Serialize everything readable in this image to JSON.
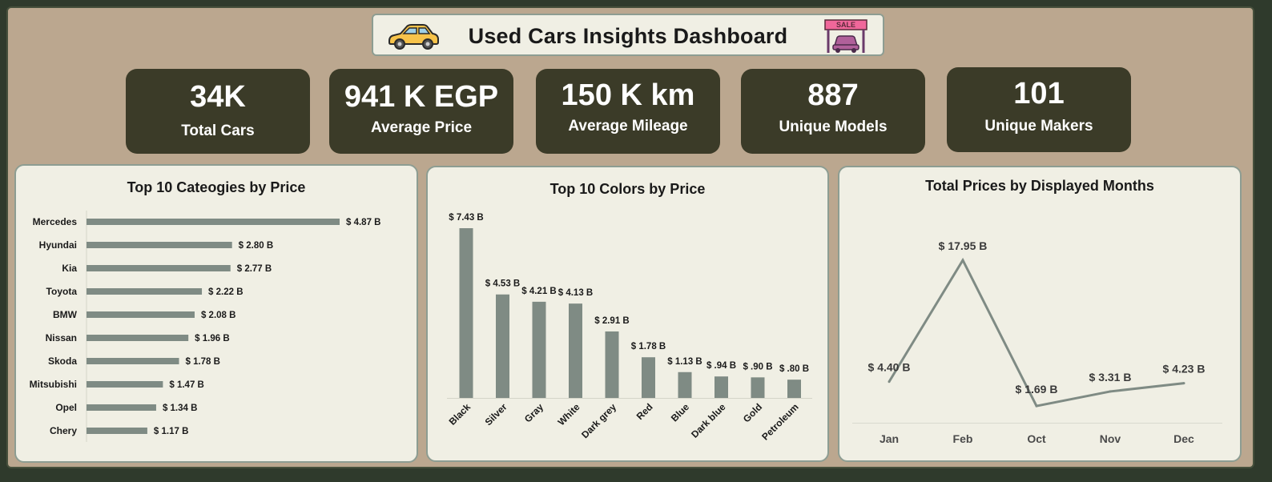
{
  "dashboard": {
    "title": "Used Cars Insights Dashboard",
    "icons": [
      "car-icon",
      "sale-sign-icon"
    ]
  },
  "kpis": [
    {
      "value": "34K",
      "label": "Total Cars"
    },
    {
      "value": "941 K EGP",
      "label": "Average Price"
    },
    {
      "value": "150 K km",
      "label": "Average Mileage"
    },
    {
      "value": "887",
      "label": "Unique Models"
    },
    {
      "value": "101",
      "label": "Unique Makers"
    }
  ],
  "colors": {
    "background": "#bba78f",
    "kpi_card": "#3b3b28",
    "panel": "#f0efe4",
    "series": "#7f8b84"
  },
  "chart_data": [
    {
      "type": "bar",
      "orientation": "horizontal",
      "title": "Top 10 Cateogies by Price",
      "categories": [
        "Mercedes",
        "Hyundai",
        "Kia",
        "Toyota",
        "BMW",
        "Nissan",
        "Skoda",
        "Mitsubishi",
        "Opel",
        "Chery"
      ],
      "values": [
        4.87,
        2.8,
        2.77,
        2.22,
        2.08,
        1.96,
        1.78,
        1.47,
        1.34,
        1.17
      ],
      "labels": [
        "$ 4.87 B",
        "$ 2.80 B",
        "$ 2.77 B",
        "$ 2.22 B",
        "$ 2.08 B",
        "$ 1.96 B",
        "$ 1.78 B",
        "$ 1.47 B",
        "$ 1.34 B",
        "$ 1.17 B"
      ],
      "unit": "B",
      "xlim": [
        0,
        5.0
      ],
      "grid": false,
      "legend": "none"
    },
    {
      "type": "bar",
      "orientation": "vertical",
      "title": "Top 10 Colors by Price",
      "categories": [
        "Black",
        "Silver",
        "Gray",
        "White",
        "Dark grey",
        "Red",
        "Blue",
        "Dark blue",
        "Gold",
        "Petroleum"
      ],
      "values": [
        7.43,
        4.53,
        4.21,
        4.13,
        2.91,
        1.78,
        1.13,
        0.94,
        0.9,
        0.8
      ],
      "labels": [
        "$ 7.43 B",
        "$ 4.53 B",
        "$ 4.21 B",
        "$ 4.13 B",
        "$ 2.91 B",
        "$ 1.78 B",
        "$ 1.13 B",
        "$ .94 B",
        "$ .90 B",
        "$ .80 B"
      ],
      "unit": "B",
      "ylim": [
        0,
        7.43
      ],
      "grid": false,
      "legend": "none"
    },
    {
      "type": "line",
      "title": "Total Prices by Displayed Months",
      "categories": [
        "Jan",
        "Feb",
        "Oct",
        "Nov",
        "Dec"
      ],
      "values": [
        4.4,
        17.95,
        1.69,
        3.31,
        4.23
      ],
      "labels": [
        "$ 4.40 B",
        "$ 17.95 B",
        "$ 1.69 B",
        "$ 3.31 B",
        "$ 4.23 B"
      ],
      "unit": "B",
      "ylim": [
        0,
        20
      ],
      "grid": false,
      "legend": "none"
    }
  ]
}
